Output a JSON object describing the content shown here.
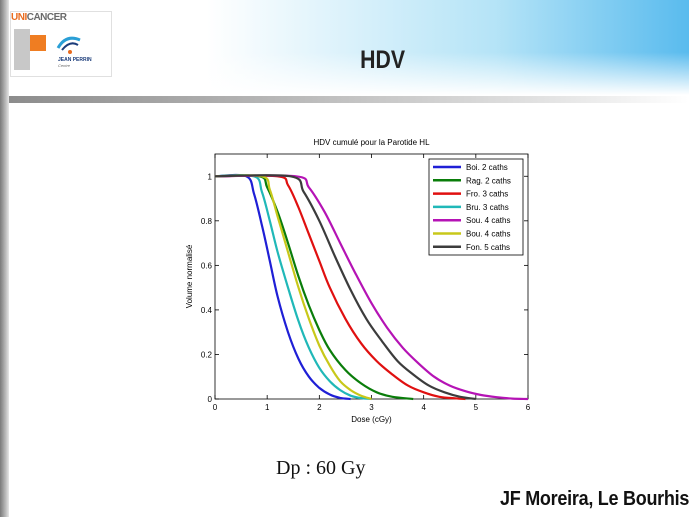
{
  "header": {
    "title": "HDV",
    "logo_text_uni": "UNI",
    "logo_text_cancer": "CANCER",
    "logo_org": "JEAN PERRIN",
    "logo_sub": "Centre"
  },
  "footer": {
    "dose": "Dp : 60 Gy",
    "authors": "JF Moreira, Le Bourhis"
  },
  "chart_data": {
    "type": "line",
    "title": "HDV cumulé pour la Parotide HL",
    "xlabel": "Dose (cGy)",
    "ylabel": "Volume normalisé",
    "xlim": [
      0,
      6
    ],
    "ylim": [
      0,
      1.1
    ],
    "xticks": [
      0,
      1,
      2,
      3,
      4,
      5,
      6
    ],
    "yticks": [
      0,
      0.2,
      0.4,
      0.6,
      0.8,
      1
    ],
    "ytick_labels": [
      "0",
      "0.2",
      "0.4",
      "0.6",
      "0.8",
      "1"
    ],
    "legend_position": "top-right",
    "grid": false,
    "series": [
      {
        "name": "Boi. 2 caths",
        "color": "#1f1fd6",
        "x": [
          0,
          0.6,
          0.75,
          0.9,
          1.05,
          1.2,
          1.4,
          1.6,
          1.8,
          2.0,
          2.2,
          2.4,
          2.6
        ],
        "y": [
          1,
          1,
          0.92,
          0.78,
          0.62,
          0.46,
          0.3,
          0.18,
          0.1,
          0.05,
          0.02,
          0.005,
          0
        ]
      },
      {
        "name": "Rag. 2 caths",
        "color": "#0a7d0a",
        "x": [
          0,
          0.85,
          1.0,
          1.2,
          1.4,
          1.6,
          1.8,
          2.0,
          2.2,
          2.5,
          2.8,
          3.1,
          3.4,
          3.8
        ],
        "y": [
          1,
          1,
          0.95,
          0.84,
          0.7,
          0.55,
          0.42,
          0.31,
          0.22,
          0.13,
          0.07,
          0.03,
          0.01,
          0
        ]
      },
      {
        "name": "Fro. 3 caths",
        "color": "#e01010",
        "x": [
          0,
          1.2,
          1.4,
          1.6,
          1.8,
          2.0,
          2.2,
          2.5,
          2.8,
          3.1,
          3.4,
          3.7,
          4.0,
          4.3,
          4.6,
          4.8
        ],
        "y": [
          1,
          1,
          0.96,
          0.86,
          0.74,
          0.62,
          0.5,
          0.36,
          0.25,
          0.17,
          0.11,
          0.06,
          0.03,
          0.01,
          0.003,
          0
        ]
      },
      {
        "name": "Bru. 3 caths",
        "color": "#20b8b8",
        "x": [
          0,
          0.75,
          0.9,
          1.05,
          1.2,
          1.4,
          1.6,
          1.8,
          2.0,
          2.2,
          2.4,
          2.6,
          2.8,
          3.0
        ],
        "y": [
          1,
          1,
          0.93,
          0.8,
          0.66,
          0.5,
          0.35,
          0.23,
          0.14,
          0.08,
          0.04,
          0.015,
          0.004,
          0
        ]
      },
      {
        "name": "Sou. 4 caths",
        "color": "#b513b5",
        "x": [
          0,
          1.55,
          1.8,
          2.1,
          2.4,
          2.7,
          3.0,
          3.3,
          3.6,
          3.9,
          4.2,
          4.5,
          4.8,
          5.1,
          5.4,
          5.7,
          6.0
        ],
        "y": [
          1,
          1,
          0.95,
          0.84,
          0.7,
          0.56,
          0.43,
          0.32,
          0.23,
          0.16,
          0.1,
          0.06,
          0.035,
          0.018,
          0.008,
          0.002,
          0
        ]
      },
      {
        "name": "Bou. 4 caths",
        "color": "#c8c81a",
        "x": [
          0,
          0.9,
          1.05,
          1.2,
          1.4,
          1.6,
          1.8,
          2.0,
          2.2,
          2.4,
          2.6,
          2.8,
          3.0
        ],
        "y": [
          1,
          1,
          0.94,
          0.82,
          0.66,
          0.5,
          0.36,
          0.24,
          0.15,
          0.08,
          0.04,
          0.015,
          0
        ]
      },
      {
        "name": "Fon. 5 caths",
        "color": "#3c3c3c",
        "x": [
          0,
          1.45,
          1.7,
          2.0,
          2.3,
          2.6,
          2.9,
          3.2,
          3.5,
          3.8,
          4.1,
          4.4,
          4.7,
          5.0
        ],
        "y": [
          1,
          1,
          0.93,
          0.8,
          0.64,
          0.49,
          0.36,
          0.26,
          0.17,
          0.11,
          0.06,
          0.03,
          0.01,
          0
        ]
      }
    ]
  }
}
